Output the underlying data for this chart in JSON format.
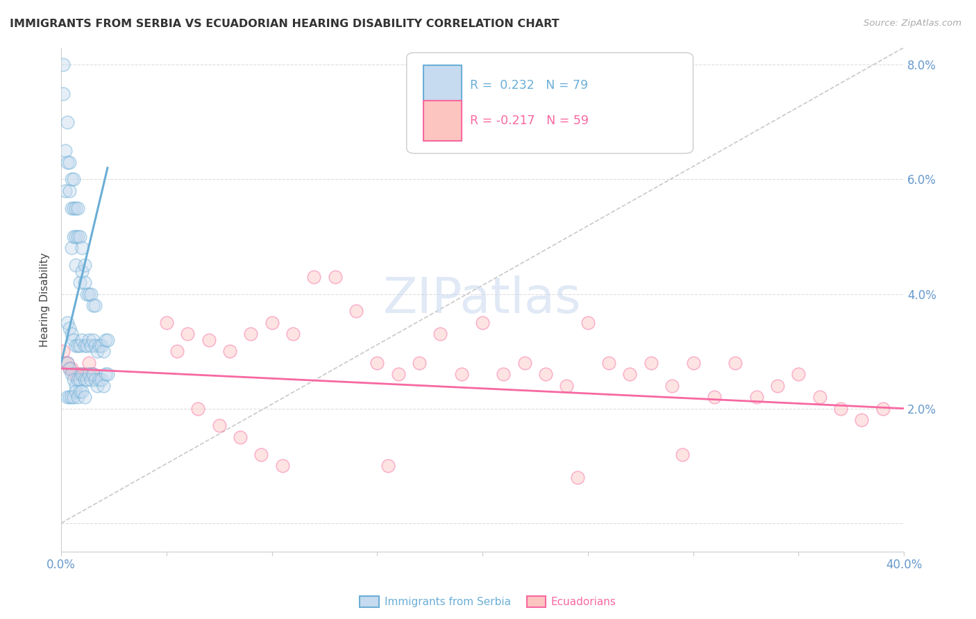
{
  "title": "IMMIGRANTS FROM SERBIA VS ECUADORIAN HEARING DISABILITY CORRELATION CHART",
  "source": "Source: ZipAtlas.com",
  "ylabel": "Hearing Disability",
  "x_min": 0.0,
  "x_max": 0.4,
  "y_min": -0.005,
  "y_max": 0.083,
  "yticks": [
    0.0,
    0.02,
    0.04,
    0.06,
    0.08
  ],
  "xticks": [
    0.0,
    0.05,
    0.1,
    0.15,
    0.2,
    0.25,
    0.3,
    0.35,
    0.4
  ],
  "serbia_color": "#6baed6",
  "serbia_fill": "#c6dbef",
  "ecuador_color": "#f768a1",
  "ecuador_fill": "#fcc5c0",
  "serbia_R": 0.232,
  "serbia_N": 79,
  "ecuador_R": -0.217,
  "ecuador_N": 59,
  "serbia_x": [
    0.001,
    0.001,
    0.002,
    0.002,
    0.003,
    0.003,
    0.004,
    0.004,
    0.005,
    0.005,
    0.005,
    0.006,
    0.006,
    0.006,
    0.007,
    0.007,
    0.007,
    0.008,
    0.008,
    0.009,
    0.009,
    0.01,
    0.01,
    0.011,
    0.011,
    0.012,
    0.013,
    0.014,
    0.015,
    0.016,
    0.003,
    0.004,
    0.005,
    0.006,
    0.007,
    0.008,
    0.009,
    0.01,
    0.011,
    0.012,
    0.013,
    0.014,
    0.015,
    0.016,
    0.017,
    0.018,
    0.019,
    0.02,
    0.021,
    0.022,
    0.003,
    0.004,
    0.005,
    0.006,
    0.007,
    0.008,
    0.009,
    0.01,
    0.011,
    0.012,
    0.013,
    0.014,
    0.015,
    0.016,
    0.017,
    0.018,
    0.019,
    0.02,
    0.021,
    0.022,
    0.003,
    0.004,
    0.005,
    0.006,
    0.007,
    0.008,
    0.009,
    0.01,
    0.011
  ],
  "serbia_y": [
    0.08,
    0.075,
    0.065,
    0.058,
    0.07,
    0.063,
    0.063,
    0.058,
    0.06,
    0.055,
    0.048,
    0.06,
    0.055,
    0.05,
    0.055,
    0.05,
    0.045,
    0.055,
    0.05,
    0.05,
    0.042,
    0.048,
    0.044,
    0.045,
    0.042,
    0.04,
    0.04,
    0.04,
    0.038,
    0.038,
    0.028,
    0.027,
    0.026,
    0.025,
    0.024,
    0.025,
    0.025,
    0.026,
    0.025,
    0.025,
    0.026,
    0.025,
    0.026,
    0.025,
    0.024,
    0.025,
    0.025,
    0.024,
    0.026,
    0.026,
    0.035,
    0.034,
    0.033,
    0.032,
    0.031,
    0.031,
    0.031,
    0.032,
    0.031,
    0.031,
    0.032,
    0.031,
    0.032,
    0.031,
    0.03,
    0.031,
    0.031,
    0.03,
    0.032,
    0.032,
    0.022,
    0.022,
    0.022,
    0.022,
    0.023,
    0.022,
    0.023,
    0.023,
    0.022
  ],
  "ecuador_x": [
    0.001,
    0.002,
    0.003,
    0.004,
    0.005,
    0.006,
    0.007,
    0.008,
    0.009,
    0.01,
    0.011,
    0.012,
    0.013,
    0.014,
    0.015,
    0.05,
    0.06,
    0.07,
    0.08,
    0.09,
    0.1,
    0.11,
    0.12,
    0.13,
    0.14,
    0.15,
    0.16,
    0.17,
    0.18,
    0.19,
    0.2,
    0.21,
    0.22,
    0.23,
    0.24,
    0.25,
    0.26,
    0.27,
    0.28,
    0.29,
    0.3,
    0.31,
    0.32,
    0.33,
    0.34,
    0.35,
    0.36,
    0.37,
    0.38,
    0.39,
    0.055,
    0.065,
    0.075,
    0.085,
    0.095,
    0.105,
    0.155,
    0.245,
    0.295
  ],
  "ecuador_y": [
    0.03,
    0.028,
    0.028,
    0.027,
    0.027,
    0.026,
    0.026,
    0.026,
    0.026,
    0.026,
    0.026,
    0.026,
    0.028,
    0.026,
    0.026,
    0.035,
    0.033,
    0.032,
    0.03,
    0.033,
    0.035,
    0.033,
    0.043,
    0.043,
    0.037,
    0.028,
    0.026,
    0.028,
    0.033,
    0.026,
    0.035,
    0.026,
    0.028,
    0.026,
    0.024,
    0.035,
    0.028,
    0.026,
    0.028,
    0.024,
    0.028,
    0.022,
    0.028,
    0.022,
    0.024,
    0.026,
    0.022,
    0.02,
    0.018,
    0.02,
    0.03,
    0.02,
    0.017,
    0.015,
    0.012,
    0.01,
    0.01,
    0.008,
    0.012
  ],
  "diag_line_x": [
    0.0,
    0.4
  ],
  "diag_line_y": [
    0.0,
    0.083
  ],
  "blue_trend_x": [
    0.0,
    0.022
  ],
  "blue_trend_y": [
    0.028,
    0.062
  ],
  "pink_trend_x": [
    0.0,
    0.4
  ],
  "pink_trend_y": [
    0.027,
    0.02
  ],
  "background_color": "#ffffff",
  "grid_color": "#dddddd",
  "title_color": "#333333",
  "axis_color": "#6699cc",
  "legend_label1": "Immigrants from Serbia",
  "legend_label2": "Ecuadorians",
  "watermark": "ZIPatlas"
}
